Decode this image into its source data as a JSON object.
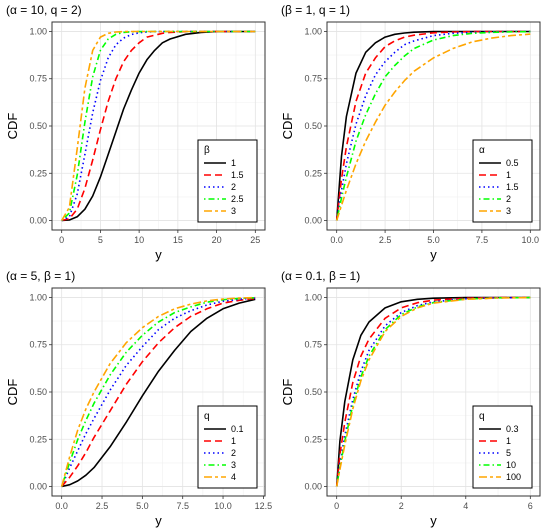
{
  "chart_data": [
    {
      "type": "line",
      "title": "(α = 10, q = 2)",
      "xlabel": "y",
      "ylabel": "CDF",
      "xlim": [
        -1.25,
        26.25
      ],
      "ylim": [
        -0.05,
        1.05
      ],
      "xticks": [
        0,
        5,
        10,
        15,
        20,
        25
      ],
      "xtick_labels": [
        "0",
        "5",
        "10",
        "15",
        "20",
        "25"
      ],
      "yticks": [
        0,
        0.25,
        0.5,
        0.75,
        1
      ],
      "ytick_labels": [
        "0.00",
        "0.25",
        "0.50",
        "0.75",
        "1.00"
      ],
      "grid": true,
      "legend_title": "β",
      "legend_position": "bottom-right",
      "x": [
        0,
        1,
        2,
        3,
        4,
        5,
        6,
        7,
        8,
        9,
        10,
        11,
        12,
        13,
        14,
        16,
        18,
        20,
        25
      ],
      "series": [
        {
          "name": "1",
          "color": "#000000",
          "dash": "solid",
          "values": [
            0,
            0.003,
            0.02,
            0.06,
            0.13,
            0.23,
            0.35,
            0.47,
            0.59,
            0.69,
            0.78,
            0.85,
            0.9,
            0.94,
            0.96,
            0.985,
            0.995,
            0.999,
            1.0
          ]
        },
        {
          "name": "1.5",
          "color": "#ff0000",
          "dash": "longdash",
          "values": [
            0,
            0.01,
            0.06,
            0.17,
            0.32,
            0.48,
            0.63,
            0.75,
            0.84,
            0.9,
            0.94,
            0.97,
            0.98,
            0.99,
            0.995,
            0.999,
            1.0,
            1.0,
            1.0
          ]
        },
        {
          "name": "2",
          "color": "#0000ff",
          "dash": "dotted",
          "values": [
            0,
            0.02,
            0.14,
            0.35,
            0.57,
            0.74,
            0.86,
            0.93,
            0.965,
            0.984,
            0.993,
            0.997,
            0.999,
            1.0,
            1.0,
            1.0,
            1.0,
            1.0,
            1.0
          ]
        },
        {
          "name": "2.5",
          "color": "#00ff00",
          "dash": "dotdash",
          "values": [
            0,
            0.04,
            0.24,
            0.52,
            0.76,
            0.9,
            0.96,
            0.985,
            0.995,
            0.998,
            0.999,
            1.0,
            1.0,
            1.0,
            1.0,
            1.0,
            1.0,
            1.0,
            1.0
          ]
        },
        {
          "name": "3",
          "color": "#ffa500",
          "dash": "twodash",
          "values": [
            0,
            0.07,
            0.38,
            0.7,
            0.9,
            0.97,
            0.99,
            0.997,
            0.999,
            1.0,
            1.0,
            1.0,
            1.0,
            1.0,
            1.0,
            1.0,
            1.0,
            1.0,
            1.0
          ]
        }
      ]
    },
    {
      "type": "line",
      "title": "(β = 1, q = 1)",
      "xlabel": "y",
      "ylabel": "CDF",
      "xlim": [
        -0.5,
        10.5
      ],
      "ylim": [
        -0.05,
        1.05
      ],
      "xticks": [
        0,
        2.5,
        5,
        7.5,
        10
      ],
      "xtick_labels": [
        "0.0",
        "2.5",
        "5.0",
        "7.5",
        "10.0"
      ],
      "yticks": [
        0,
        0.25,
        0.5,
        0.75,
        1
      ],
      "ytick_labels": [
        "0.00",
        "0.25",
        "0.50",
        "0.75",
        "1.00"
      ],
      "grid": true,
      "legend_title": "α",
      "legend_position": "bottom-right",
      "x": [
        0,
        0.25,
        0.5,
        1,
        1.5,
        2,
        2.5,
        3,
        3.5,
        4,
        5,
        6,
        7,
        8,
        9,
        10
      ],
      "series": [
        {
          "name": "0.5",
          "color": "#000000",
          "dash": "solid",
          "values": [
            0,
            0.34,
            0.55,
            0.78,
            0.89,
            0.94,
            0.97,
            0.985,
            0.992,
            0.996,
            0.999,
            1.0,
            1.0,
            1.0,
            1.0,
            1.0
          ]
        },
        {
          "name": "1",
          "color": "#ff0000",
          "dash": "longdash",
          "values": [
            0,
            0.22,
            0.39,
            0.63,
            0.78,
            0.86,
            0.92,
            0.95,
            0.97,
            0.98,
            0.993,
            0.997,
            0.999,
            1.0,
            1.0,
            1.0
          ]
        },
        {
          "name": "1.5",
          "color": "#0000ff",
          "dash": "dotted",
          "values": [
            0,
            0.16,
            0.3,
            0.51,
            0.66,
            0.77,
            0.84,
            0.89,
            0.93,
            0.95,
            0.978,
            0.99,
            0.995,
            0.998,
            0.999,
            1.0
          ]
        },
        {
          "name": "2",
          "color": "#00ff00",
          "dash": "dotdash",
          "values": [
            0,
            0.12,
            0.23,
            0.42,
            0.56,
            0.67,
            0.76,
            0.82,
            0.87,
            0.91,
            0.955,
            0.978,
            0.99,
            0.995,
            0.998,
            0.999
          ]
        },
        {
          "name": "3",
          "color": "#ffa500",
          "dash": "twodash",
          "values": [
            0,
            0.08,
            0.16,
            0.3,
            0.42,
            0.52,
            0.61,
            0.68,
            0.74,
            0.79,
            0.86,
            0.91,
            0.945,
            0.965,
            0.978,
            0.986
          ]
        }
      ]
    },
    {
      "type": "line",
      "title": "(α = 5, β = 1)",
      "xlabel": "y",
      "ylabel": "CDF",
      "xlim": [
        -0.6,
        12.6
      ],
      "ylim": [
        -0.05,
        1.05
      ],
      "xticks": [
        0,
        2.5,
        5,
        7.5,
        10,
        12.5
      ],
      "xtick_labels": [
        "0.0",
        "2.5",
        "5.0",
        "7.5",
        "10.0",
        "12.5"
      ],
      "yticks": [
        0,
        0.25,
        0.5,
        0.75,
        1
      ],
      "ytick_labels": [
        "0.00",
        "0.25",
        "0.50",
        "0.75",
        "1.00"
      ],
      "grid": true,
      "legend_title": "q",
      "legend_position": "bottom-right",
      "x": [
        0,
        0.5,
        1,
        1.5,
        2,
        3,
        4,
        5,
        6,
        7,
        8,
        9,
        10,
        11,
        12
      ],
      "series": [
        {
          "name": "0.1",
          "color": "#000000",
          "dash": "solid",
          "values": [
            0,
            0.01,
            0.03,
            0.06,
            0.1,
            0.21,
            0.34,
            0.48,
            0.61,
            0.72,
            0.82,
            0.89,
            0.94,
            0.97,
            0.99
          ]
        },
        {
          "name": "1",
          "color": "#ff0000",
          "dash": "longdash",
          "values": [
            0,
            0.05,
            0.11,
            0.18,
            0.26,
            0.4,
            0.54,
            0.66,
            0.76,
            0.84,
            0.9,
            0.94,
            0.97,
            0.985,
            0.995
          ]
        },
        {
          "name": "2",
          "color": "#0000ff",
          "dash": "dotted",
          "values": [
            0,
            0.1,
            0.19,
            0.28,
            0.36,
            0.51,
            0.64,
            0.74,
            0.83,
            0.89,
            0.93,
            0.96,
            0.98,
            0.99,
            0.997
          ]
        },
        {
          "name": "3",
          "color": "#00ff00",
          "dash": "dotdash",
          "values": [
            0,
            0.13,
            0.25,
            0.35,
            0.44,
            0.59,
            0.71,
            0.8,
            0.87,
            0.92,
            0.95,
            0.975,
            0.988,
            0.995,
            0.998
          ]
        },
        {
          "name": "4",
          "color": "#ffa500",
          "dash": "twodash",
          "values": [
            0,
            0.16,
            0.3,
            0.41,
            0.5,
            0.65,
            0.76,
            0.84,
            0.9,
            0.94,
            0.965,
            0.982,
            0.992,
            0.997,
            0.999
          ]
        }
      ]
    },
    {
      "type": "line",
      "title": "(α = 0.1, β = 1)",
      "xlabel": "y",
      "ylabel": "CDF",
      "xlim": [
        -0.3,
        6.3
      ],
      "ylim": [
        -0.05,
        1.05
      ],
      "xticks": [
        0,
        2,
        4,
        6
      ],
      "xtick_labels": [
        "0",
        "2",
        "4",
        "6"
      ],
      "yticks": [
        0,
        0.25,
        0.5,
        0.75,
        1
      ],
      "ytick_labels": [
        "0.00",
        "0.25",
        "0.50",
        "0.75",
        "1.00"
      ],
      "grid": true,
      "legend_title": "q",
      "legend_position": "bottom-right",
      "x": [
        0,
        0.1,
        0.25,
        0.5,
        0.75,
        1,
        1.5,
        2,
        2.5,
        3,
        4,
        5,
        6
      ],
      "series": [
        {
          "name": "0.3",
          "color": "#000000",
          "dash": "solid",
          "values": [
            0,
            0.24,
            0.45,
            0.67,
            0.8,
            0.87,
            0.945,
            0.977,
            0.99,
            0.996,
            0.999,
            1.0,
            1.0
          ]
        },
        {
          "name": "1",
          "color": "#ff0000",
          "dash": "longdash",
          "values": [
            0,
            0.17,
            0.34,
            0.55,
            0.69,
            0.78,
            0.89,
            0.945,
            0.972,
            0.986,
            0.996,
            0.999,
            1.0
          ]
        },
        {
          "name": "5",
          "color": "#0000ff",
          "dash": "dotted",
          "values": [
            0,
            0.12,
            0.27,
            0.46,
            0.61,
            0.72,
            0.85,
            0.92,
            0.957,
            0.977,
            0.993,
            0.998,
            0.999
          ]
        },
        {
          "name": "10",
          "color": "#00ff00",
          "dash": "dotdash",
          "values": [
            0,
            0.1,
            0.24,
            0.43,
            0.58,
            0.69,
            0.83,
            0.91,
            0.95,
            0.973,
            0.992,
            0.998,
            0.999
          ]
        },
        {
          "name": "100",
          "color": "#ffa500",
          "dash": "twodash",
          "values": [
            0,
            0.09,
            0.22,
            0.41,
            0.56,
            0.67,
            0.82,
            0.9,
            0.945,
            0.97,
            0.99,
            0.997,
            0.999
          ]
        }
      ]
    }
  ]
}
